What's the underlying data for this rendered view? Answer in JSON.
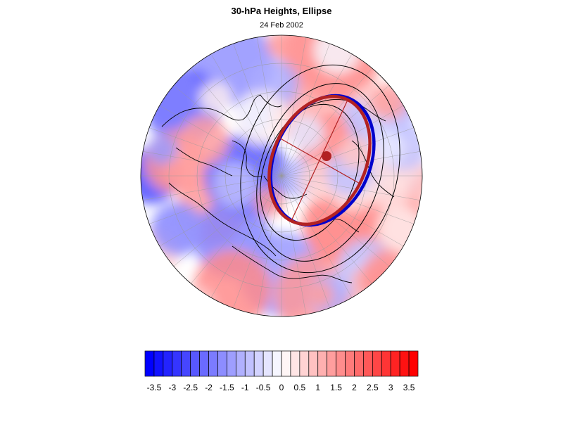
{
  "title": "30-hPa Heights, Ellipse",
  "subtitle": "24 Feb 2002",
  "map": {
    "projection": "north-polar-stereographic",
    "field": "30-hPa height anomaly",
    "overlays": [
      "coastlines",
      "lat-lon-grid",
      "height-contours",
      "vortex-ellipse",
      "ellipse-axes",
      "vortex-centroid"
    ]
  },
  "colors": {
    "negative_max": "#0000ff",
    "neutral": "#ffffff",
    "positive_max": "#ff0000",
    "ellipse": "#b22222",
    "vortex_edge": "#0000cc",
    "contour": "#000000"
  },
  "colorbar": {
    "min": -3.75,
    "max": 3.75,
    "step": 0.25,
    "tick_labels": [
      "-3.5",
      "-3",
      "-2.5",
      "-2",
      "-1.5",
      "-1",
      "-0.5",
      "0",
      "0.5",
      "1",
      "1.5",
      "2",
      "2.5",
      "3",
      "3.5"
    ]
  }
}
